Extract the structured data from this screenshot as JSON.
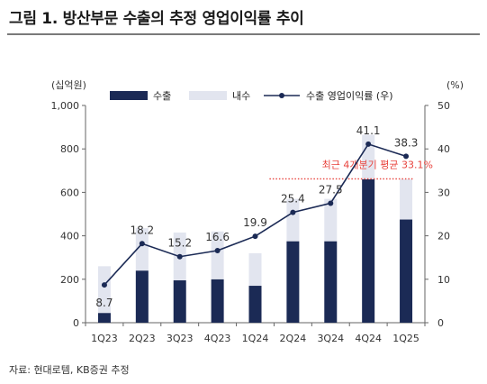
{
  "figure_title": "그림 1. 방산부문 수출의 추정 영업이익률 추이",
  "source": "자료: 현대로템, KB증권 추정",
  "colors": {
    "export": "#1b2a55",
    "domestic": "#e2e5ef",
    "line": "#1b2a55",
    "avg": "#e8423c",
    "axis": "#666666"
  },
  "chart_data": {
    "type": "bar",
    "stacked": true,
    "categories": [
      "1Q23",
      "2Q23",
      "3Q23",
      "4Q23",
      "1Q24",
      "2Q24",
      "3Q24",
      "4Q24",
      "1Q25"
    ],
    "series": [
      {
        "name": "수출",
        "axis": "left",
        "values": [
          45,
          240,
          195,
          200,
          170,
          375,
          375,
          660,
          475
        ]
      },
      {
        "name": "내수",
        "axis": "left",
        "values": [
          215,
          195,
          220,
          220,
          150,
          195,
          195,
          205,
          185
        ]
      },
      {
        "name": "수출 영업이익률 (우)",
        "type": "line",
        "axis": "right",
        "values": [
          8.7,
          18.2,
          15.2,
          16.6,
          19.9,
          25.4,
          27.5,
          41.1,
          38.3
        ]
      }
    ],
    "data_labels": [
      "8.7",
      "18.2",
      "15.2",
      "16.6",
      "19.9",
      "25.4",
      "27.5",
      "41.1",
      "38.3"
    ],
    "left_axis": {
      "label": "(십억원)",
      "ylim": [
        0,
        1000
      ],
      "ticks": [
        "0",
        "200",
        "400",
        "600",
        "800",
        "1,000"
      ]
    },
    "right_axis": {
      "label": "(%)",
      "ylim": [
        0,
        50
      ],
      "ticks": [
        "0",
        "10",
        "20",
        "30",
        "40",
        "50"
      ]
    },
    "annotation": {
      "text": "최근 4개분기 평균 33.1%",
      "value": 33.1
    },
    "legend": {
      "placement": "top",
      "entries": [
        "수출",
        "내수",
        "수출 영업이익률 (우)"
      ]
    },
    "grid": false
  }
}
